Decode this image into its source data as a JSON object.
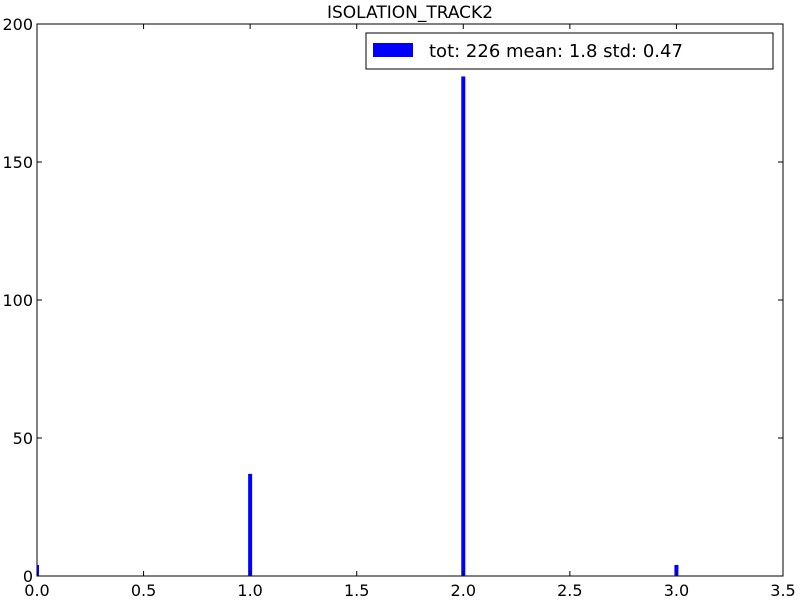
{
  "chart_data": {
    "type": "bar",
    "title": "ISOLATION_TRACK2",
    "xlabel": "",
    "ylabel": "",
    "xlim": [
      0,
      3.5
    ],
    "ylim": [
      0,
      200
    ],
    "x_ticks": [
      "0.0",
      "0.5",
      "1.0",
      "1.5",
      "2.0",
      "2.5",
      "3.0",
      "3.5"
    ],
    "y_ticks": [
      "0",
      "50",
      "100",
      "150",
      "200"
    ],
    "grid": false,
    "legend_position": "top-right",
    "series": [
      {
        "name": "tot: 226 mean: 1.8 std: 0.47",
        "color": "#0000ff",
        "bars": [
          {
            "x": 0.0,
            "value": 4
          },
          {
            "x": 1.0,
            "value": 37
          },
          {
            "x": 2.0,
            "value": 181
          },
          {
            "x": 3.0,
            "value": 4
          }
        ]
      }
    ]
  }
}
